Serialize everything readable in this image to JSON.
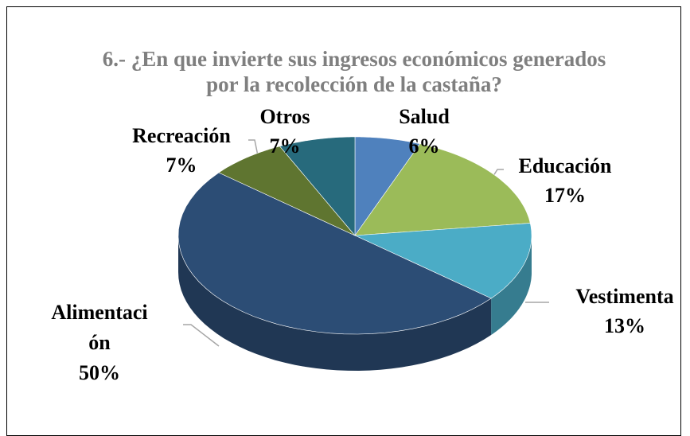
{
  "chart_data": {
    "type": "pie3d",
    "title": "6.- ¿En que invierte sus ingresos económicos generados por la recolección de la castaña?",
    "categories": [
      "Salud",
      "Educación",
      "Vestimenta",
      "Alimentación",
      "Recreación",
      "Otros"
    ],
    "values": [
      6,
      17,
      13,
      50,
      7,
      7
    ],
    "value_labels": [
      "6%",
      "17%",
      "13%",
      "50%",
      "7%",
      "7%"
    ],
    "colors": [
      "#4f81bd",
      "#9bbb59",
      "#4bacc6",
      "#2c4d75",
      "#5f7530",
      "#276a7c"
    ]
  }
}
